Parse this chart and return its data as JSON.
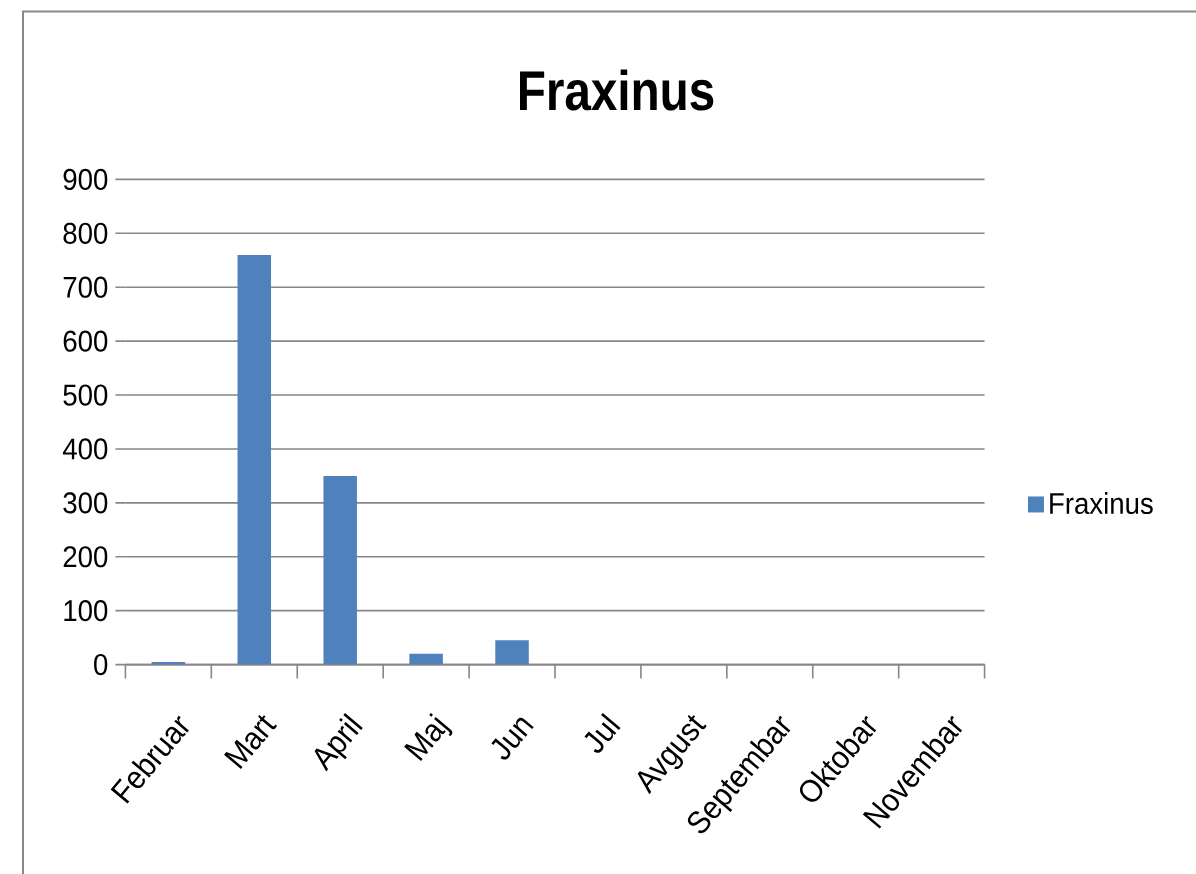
{
  "chart_data": {
    "type": "bar",
    "title": "Fraxinus",
    "categories": [
      "Februar",
      "Mart",
      "April",
      "Maj",
      "Jun",
      "Jul",
      "Avgust",
      "Septembar",
      "Oktobar",
      "Novembar"
    ],
    "series": [
      {
        "name": "Fraxinus",
        "color": "#4f81bd",
        "values": [
          5,
          760,
          350,
          20,
          45,
          0,
          0,
          0,
          0,
          0
        ]
      }
    ],
    "ylim": [
      0,
      900
    ],
    "yticks": [
      0,
      100,
      200,
      300,
      400,
      500,
      600,
      700,
      800,
      900
    ],
    "grid": "y",
    "legend": "right"
  }
}
